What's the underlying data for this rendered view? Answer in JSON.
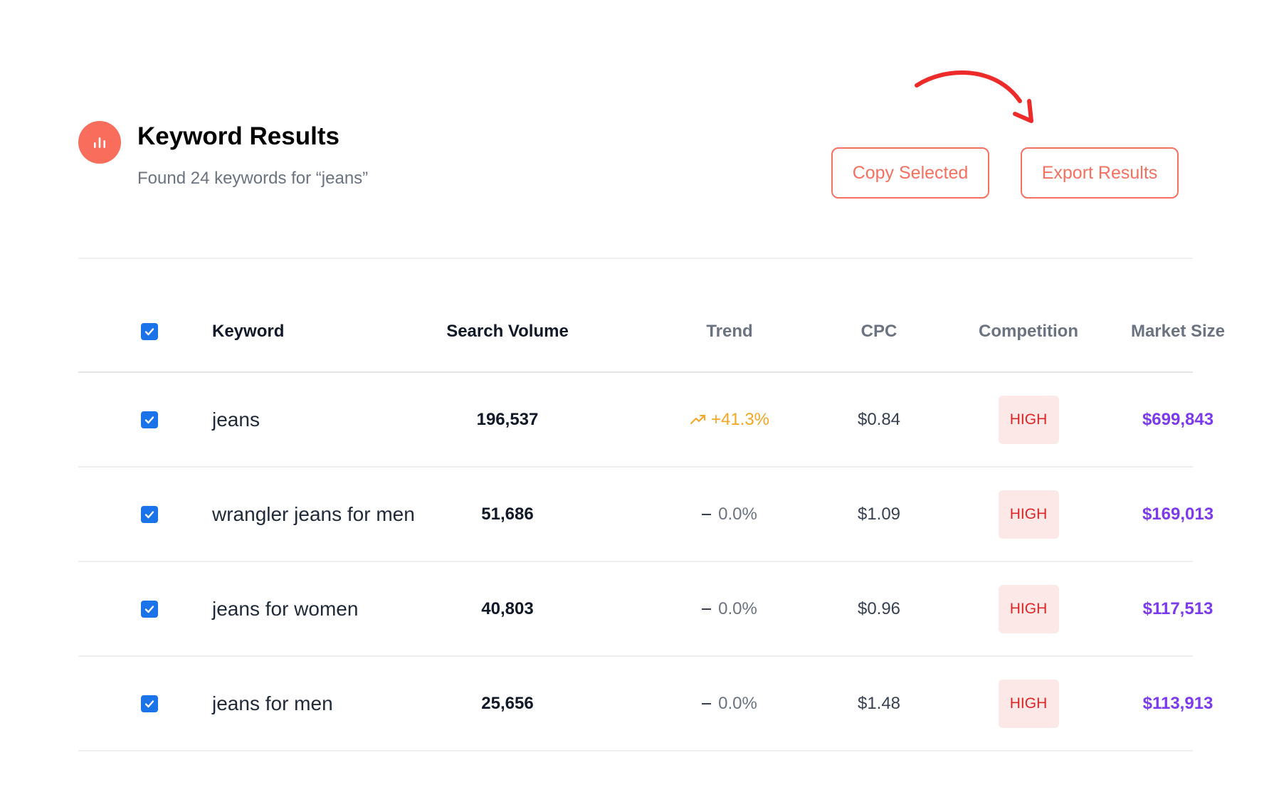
{
  "header": {
    "title": "Keyword Results",
    "subtitle": "Found 24 keywords for “jeans”",
    "copy_label": "Copy Selected",
    "export_label": "Export Results"
  },
  "colors": {
    "accent": "#f86d5b",
    "checkbox": "#1a73e8",
    "market": "#7c3aed",
    "trend_up": "#f5a623",
    "badge_bg": "#fde8e8",
    "badge_text": "#dc2626",
    "arrow": "#ee2b2b"
  },
  "table": {
    "columns": [
      "Keyword",
      "Search Volume",
      "Trend",
      "CPC",
      "Competition",
      "Market Size"
    ],
    "select_all_checked": true,
    "rows": [
      {
        "checked": true,
        "keyword": "jeans",
        "volume": "196,537",
        "trend": "+41.3%",
        "trend_dir": "up",
        "cpc": "$0.84",
        "competition": "HIGH",
        "market": "$699,843"
      },
      {
        "checked": true,
        "keyword": "wrangler jeans for men",
        "volume": "51,686",
        "trend": "0.0%",
        "trend_dir": "flat",
        "cpc": "$1.09",
        "competition": "HIGH",
        "market": "$169,013"
      },
      {
        "checked": true,
        "keyword": "jeans for women",
        "volume": "40,803",
        "trend": "0.0%",
        "trend_dir": "flat",
        "cpc": "$0.96",
        "competition": "HIGH",
        "market": "$117,513"
      },
      {
        "checked": true,
        "keyword": "jeans for men",
        "volume": "25,656",
        "trend": "0.0%",
        "trend_dir": "flat",
        "cpc": "$1.48",
        "competition": "HIGH",
        "market": "$113,913"
      }
    ]
  }
}
